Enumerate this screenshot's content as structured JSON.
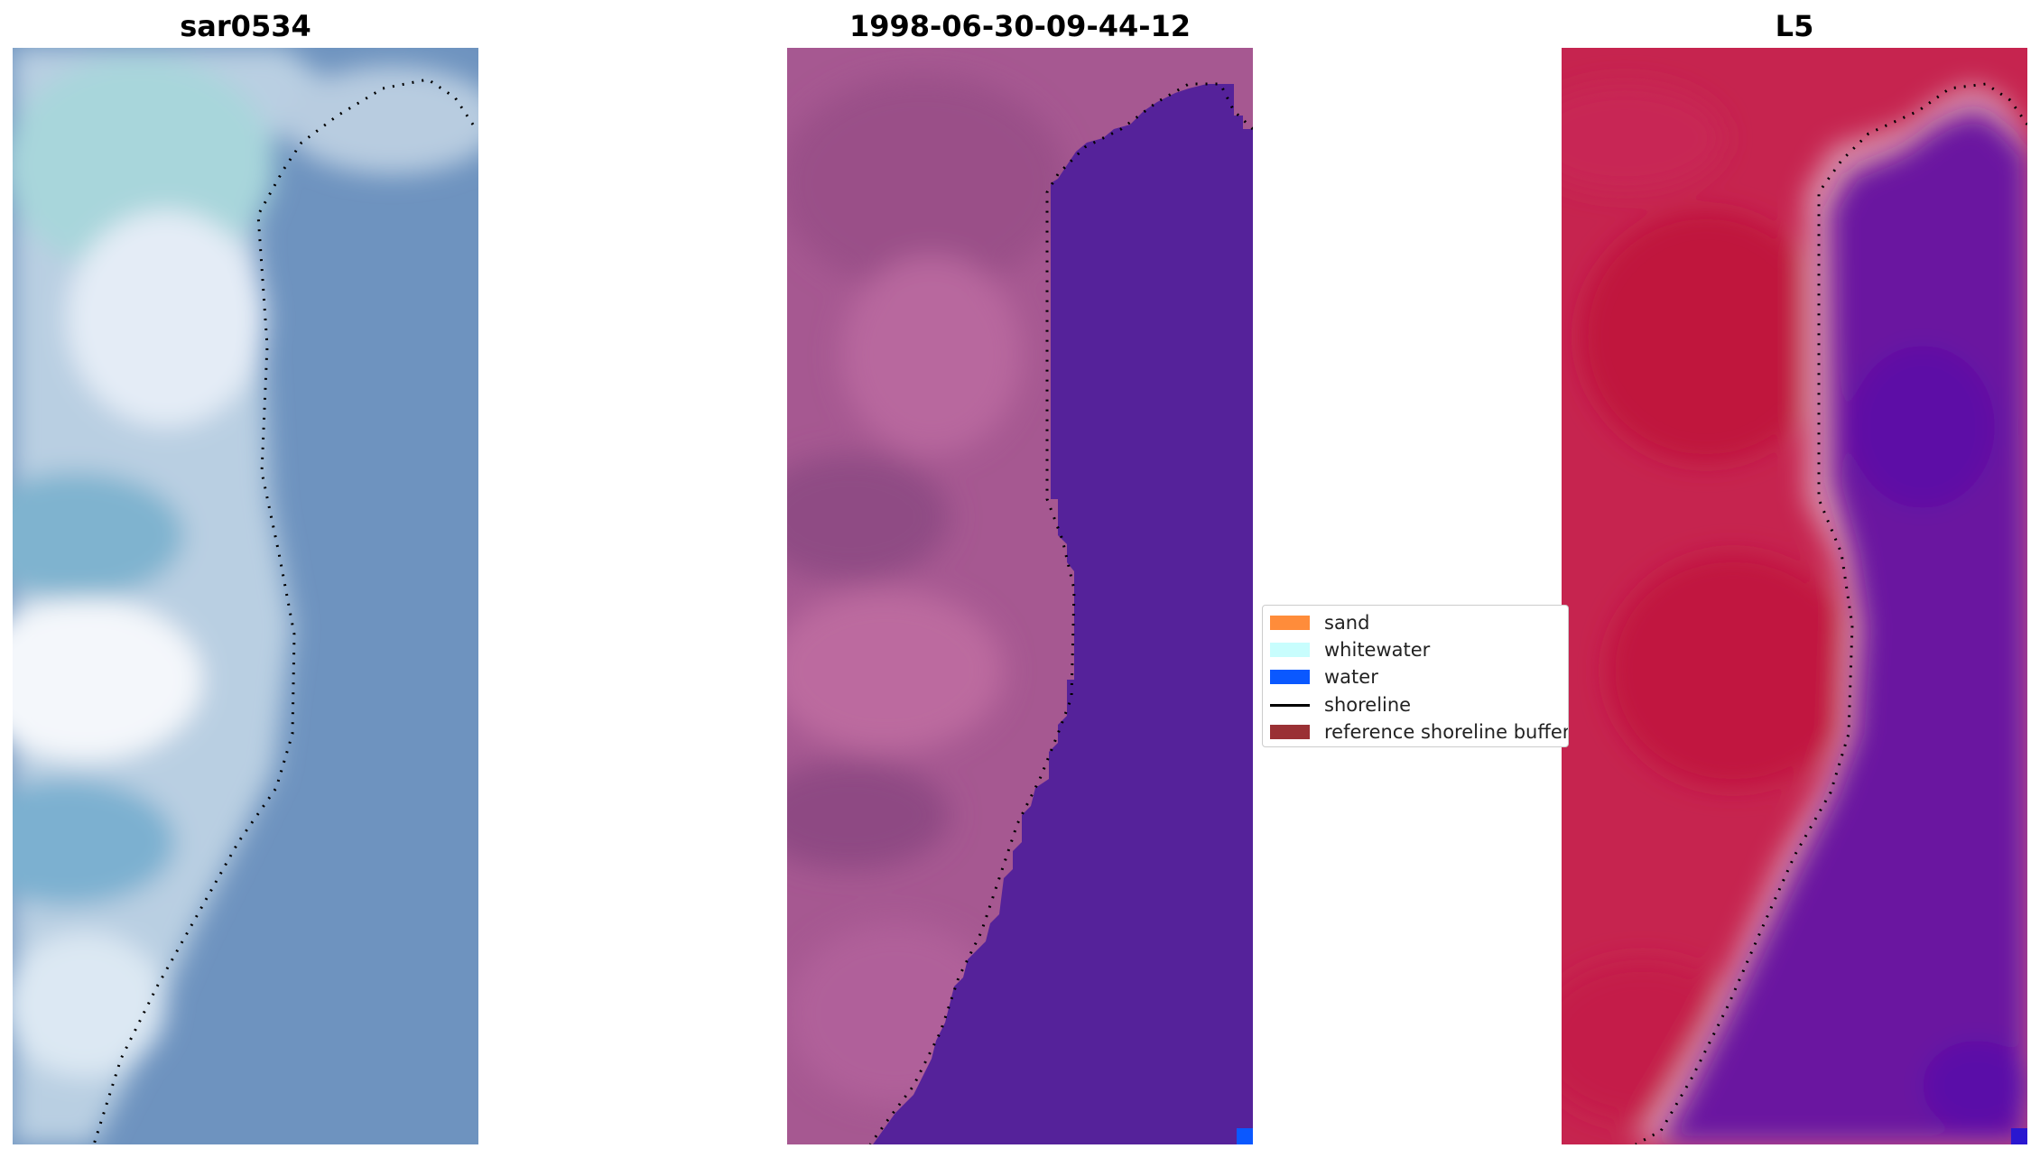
{
  "panels": [
    {
      "title": "sar0534"
    },
    {
      "title": "1998-06-30-09-44-12"
    },
    {
      "title": "L5"
    }
  ],
  "legend": {
    "items": [
      {
        "label": "sand",
        "kind": "patch",
        "color": "#ff8c3a"
      },
      {
        "label": "whitewater",
        "kind": "patch",
        "color": "#c8fdfd"
      },
      {
        "label": "water",
        "kind": "patch",
        "color": "#0a58ff"
      },
      {
        "label": "shoreline",
        "kind": "line",
        "color": "#000000"
      },
      {
        "label": "reference shoreline buffer",
        "kind": "patch",
        "color": "#9a3034"
      }
    ]
  },
  "colors": {
    "rgb_sand": "#cfe0ec",
    "rgb_water": "#6a92bd",
    "classified_land": "#a95a92",
    "classified_water": "#55229a",
    "index_land": "#c4214e",
    "index_water": "#6a17a0",
    "index_buffer": "#d98fa8",
    "shoreline": "#000000"
  }
}
